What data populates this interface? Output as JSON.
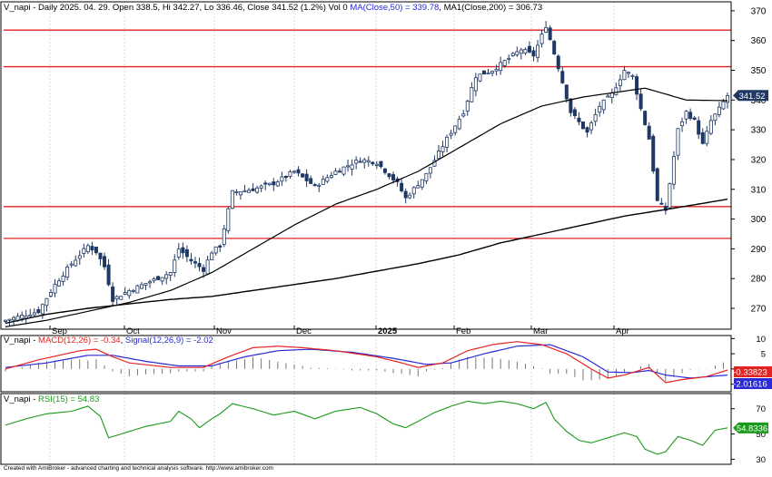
{
  "header": {
    "price_title_plain": "V_napi - Daily 2025. 04. 29. Open 338.5, Hi 342.27, Lo 336.46, Close 341.52 (1.2%) Vol 0 ",
    "price_title_ma50": "MA(Close,50) = 339.78",
    "price_title_ma200": ", MA1(Close,200) = 306.73",
    "macd_title_plain": "V_napi - ",
    "macd_title_macd": "MACD(12,26) = -0.34",
    "macd_title_sep": ", ",
    "macd_title_signal": "Signal(12,26,9) = -2.02",
    "rsi_title_plain": "V_napi - ",
    "rsi_title_rsi": "RSI(15) = 54.83"
  },
  "footer": "Created with AmiBroker - advanced charting and technical analysis software. http://www.amibroker.com",
  "colors": {
    "up": "#a0b4d2",
    "down": "#1f3864",
    "ma": "#000000",
    "hline": "#e32222",
    "macd": "#e32222",
    "signal": "#2a2ad6",
    "rsi": "#1a9a1a",
    "grid": "#dcdcdc",
    "axis": "#000000"
  },
  "chart_data": [
    {
      "type": "candlestick",
      "title": "V_napi - Daily 2025. 04. 29. Open 338.5, Hi 342.27, Lo 336.46, Close 341.52 (1.2%) Vol 0 MA(Close,50) = 339.78, MA1(Close,200) = 306.73",
      "y_ticks": [
        270,
        280,
        290,
        300,
        310,
        320,
        330,
        340,
        350,
        360,
        370
      ],
      "ylim": [
        263,
        373
      ],
      "x_labels": [
        "Sep",
        "Oct",
        "Nov",
        "Dec",
        "2025",
        "Feb",
        "Mar",
        "Apr"
      ],
      "horizontal_lines": [
        363.5,
        351.2,
        304.2,
        293.5
      ],
      "last_price_label": "341.52",
      "last_price": 341.52,
      "anchors": [
        [
          0,
          266
        ],
        [
          8,
          269
        ],
        [
          12,
          278
        ],
        [
          16,
          285
        ],
        [
          20,
          291
        ],
        [
          22,
          289
        ],
        [
          24,
          284
        ],
        [
          26,
          273
        ],
        [
          30,
          276
        ],
        [
          35,
          279
        ],
        [
          40,
          282
        ],
        [
          42,
          290
        ],
        [
          45,
          286
        ],
        [
          48,
          283
        ],
        [
          50,
          289
        ],
        [
          52,
          291
        ],
        [
          55,
          309
        ],
        [
          60,
          310
        ],
        [
          65,
          312
        ],
        [
          70,
          316
        ],
        [
          75,
          311
        ],
        [
          80,
          316
        ],
        [
          86,
          320
        ],
        [
          90,
          319
        ],
        [
          95,
          312
        ],
        [
          97,
          307
        ],
        [
          102,
          315
        ],
        [
          107,
          327
        ],
        [
          111,
          336
        ],
        [
          114,
          348
        ],
        [
          118,
          350
        ],
        [
          122,
          354
        ],
        [
          125,
          357
        ],
        [
          128,
          355
        ],
        [
          131,
          365
        ],
        [
          134,
          351
        ],
        [
          137,
          336
        ],
        [
          141,
          329
        ],
        [
          144,
          338
        ],
        [
          147,
          342
        ],
        [
          150,
          350
        ],
        [
          152,
          348
        ],
        [
          154,
          337
        ],
        [
          156,
          327
        ],
        [
          158,
          306
        ],
        [
          160,
          303
        ],
        [
          163,
          330
        ],
        [
          165,
          336
        ],
        [
          167,
          333
        ],
        [
          169,
          325
        ],
        [
          171,
          333
        ],
        [
          173,
          337
        ],
        [
          175,
          341.5
        ]
      ],
      "ma50": [
        [
          0,
          263.8
        ],
        [
          10,
          266
        ],
        [
          20,
          269
        ],
        [
          30,
          272
        ],
        [
          40,
          276
        ],
        [
          50,
          282
        ],
        [
          60,
          290
        ],
        [
          70,
          298
        ],
        [
          80,
          305
        ],
        [
          90,
          310
        ],
        [
          100,
          316
        ],
        [
          110,
          324
        ],
        [
          120,
          332
        ],
        [
          130,
          338
        ],
        [
          140,
          341
        ],
        [
          150,
          343
        ],
        [
          155,
          344
        ],
        [
          160,
          342
        ],
        [
          165,
          340
        ],
        [
          175,
          339.8
        ]
      ],
      "ma200": [
        [
          0,
          265
        ],
        [
          10,
          268
        ],
        [
          20,
          270
        ],
        [
          30,
          271.5
        ],
        [
          40,
          273
        ],
        [
          50,
          274
        ],
        [
          60,
          276
        ],
        [
          70,
          278
        ],
        [
          80,
          280
        ],
        [
          90,
          282.5
        ],
        [
          100,
          285
        ],
        [
          110,
          288
        ],
        [
          120,
          292
        ],
        [
          130,
          295
        ],
        [
          140,
          298
        ],
        [
          150,
          301
        ],
        [
          160,
          303.2
        ],
        [
          170,
          305.5
        ],
        [
          175,
          306.7
        ]
      ]
    },
    {
      "type": "line",
      "title": "V_napi - MACD(12,26) = -0.34, Signal(12,26,9) = -2.02",
      "y_ticks": [
        -5,
        0,
        5,
        10
      ],
      "ylim": [
        -7.5,
        11
      ],
      "series": [
        {
          "name": "MACD(12,26)",
          "last_label": "-0.33823",
          "anchors": [
            [
              0,
              0
            ],
            [
              8,
              3
            ],
            [
              18,
              6
            ],
            [
              22,
              6.5
            ],
            [
              26,
              4
            ],
            [
              30,
              2
            ],
            [
              40,
              0.5
            ],
            [
              48,
              0.5
            ],
            [
              54,
              4
            ],
            [
              60,
              7
            ],
            [
              66,
              7.5
            ],
            [
              72,
              7
            ],
            [
              80,
              6
            ],
            [
              90,
              4
            ],
            [
              96,
              2
            ],
            [
              100,
              0.5
            ],
            [
              106,
              2
            ],
            [
              112,
              6
            ],
            [
              118,
              8
            ],
            [
              124,
              9
            ],
            [
              130,
              8
            ],
            [
              136,
              5
            ],
            [
              142,
              0
            ],
            [
              146,
              -3
            ],
            [
              150,
              -2
            ],
            [
              156,
              0.5
            ],
            [
              160,
              -4.5
            ],
            [
              164,
              -3.5
            ],
            [
              170,
              -2.5
            ],
            [
              175,
              -0.34
            ]
          ]
        },
        {
          "name": "Signal(12,26,9)",
          "last_label": "-2.01616",
          "anchors": [
            [
              0,
              0.5
            ],
            [
              10,
              2
            ],
            [
              20,
              4.5
            ],
            [
              26,
              4.5
            ],
            [
              34,
              2.5
            ],
            [
              42,
              1
            ],
            [
              50,
              1
            ],
            [
              58,
              4
            ],
            [
              66,
              6
            ],
            [
              74,
              6.5
            ],
            [
              84,
              5.5
            ],
            [
              94,
              3.5
            ],
            [
              102,
              1.5
            ],
            [
              108,
              2
            ],
            [
              116,
              5
            ],
            [
              124,
              7.5
            ],
            [
              132,
              8
            ],
            [
              140,
              4
            ],
            [
              146,
              -1
            ],
            [
              152,
              -1.2
            ],
            [
              156,
              -0.5
            ],
            [
              160,
              -2
            ],
            [
              166,
              -3
            ],
            [
              175,
              -2.02
            ]
          ]
        }
      ]
    },
    {
      "type": "line",
      "title": "V_napi - RSI(15) = 54.83",
      "y_ticks": [
        30,
        50,
        70
      ],
      "ylim": [
        26,
        82
      ],
      "series": [
        {
          "name": "RSI(15)",
          "last_label": "54.8336",
          "anchors": [
            [
              0,
              57
            ],
            [
              5,
              62
            ],
            [
              10,
              66
            ],
            [
              16,
              68
            ],
            [
              20,
              72
            ],
            [
              23,
              64
            ],
            [
              25,
              47
            ],
            [
              28,
              50
            ],
            [
              34,
              56
            ],
            [
              40,
              60
            ],
            [
              42,
              68
            ],
            [
              45,
              62
            ],
            [
              47,
              55
            ],
            [
              50,
              62
            ],
            [
              52,
              66
            ],
            [
              55,
              74
            ],
            [
              60,
              70
            ],
            [
              65,
              65
            ],
            [
              70,
              68
            ],
            [
              75,
              62
            ],
            [
              80,
              68
            ],
            [
              86,
              71
            ],
            [
              90,
              66
            ],
            [
              94,
              58
            ],
            [
              97,
              55
            ],
            [
              100,
              60
            ],
            [
              104,
              67
            ],
            [
              108,
              72
            ],
            [
              112,
              76
            ],
            [
              116,
              74
            ],
            [
              120,
              76
            ],
            [
              124,
              74
            ],
            [
              128,
              70
            ],
            [
              131,
              75
            ],
            [
              133,
              62
            ],
            [
              136,
              52
            ],
            [
              139,
              45
            ],
            [
              142,
              43
            ],
            [
              146,
              47
            ],
            [
              150,
              51
            ],
            [
              153,
              48
            ],
            [
              155,
              38
            ],
            [
              158,
              34
            ],
            [
              160,
              36
            ],
            [
              163,
              48
            ],
            [
              166,
              45
            ],
            [
              169,
              41
            ],
            [
              172,
              53
            ],
            [
              175,
              54.83
            ]
          ]
        }
      ]
    }
  ]
}
